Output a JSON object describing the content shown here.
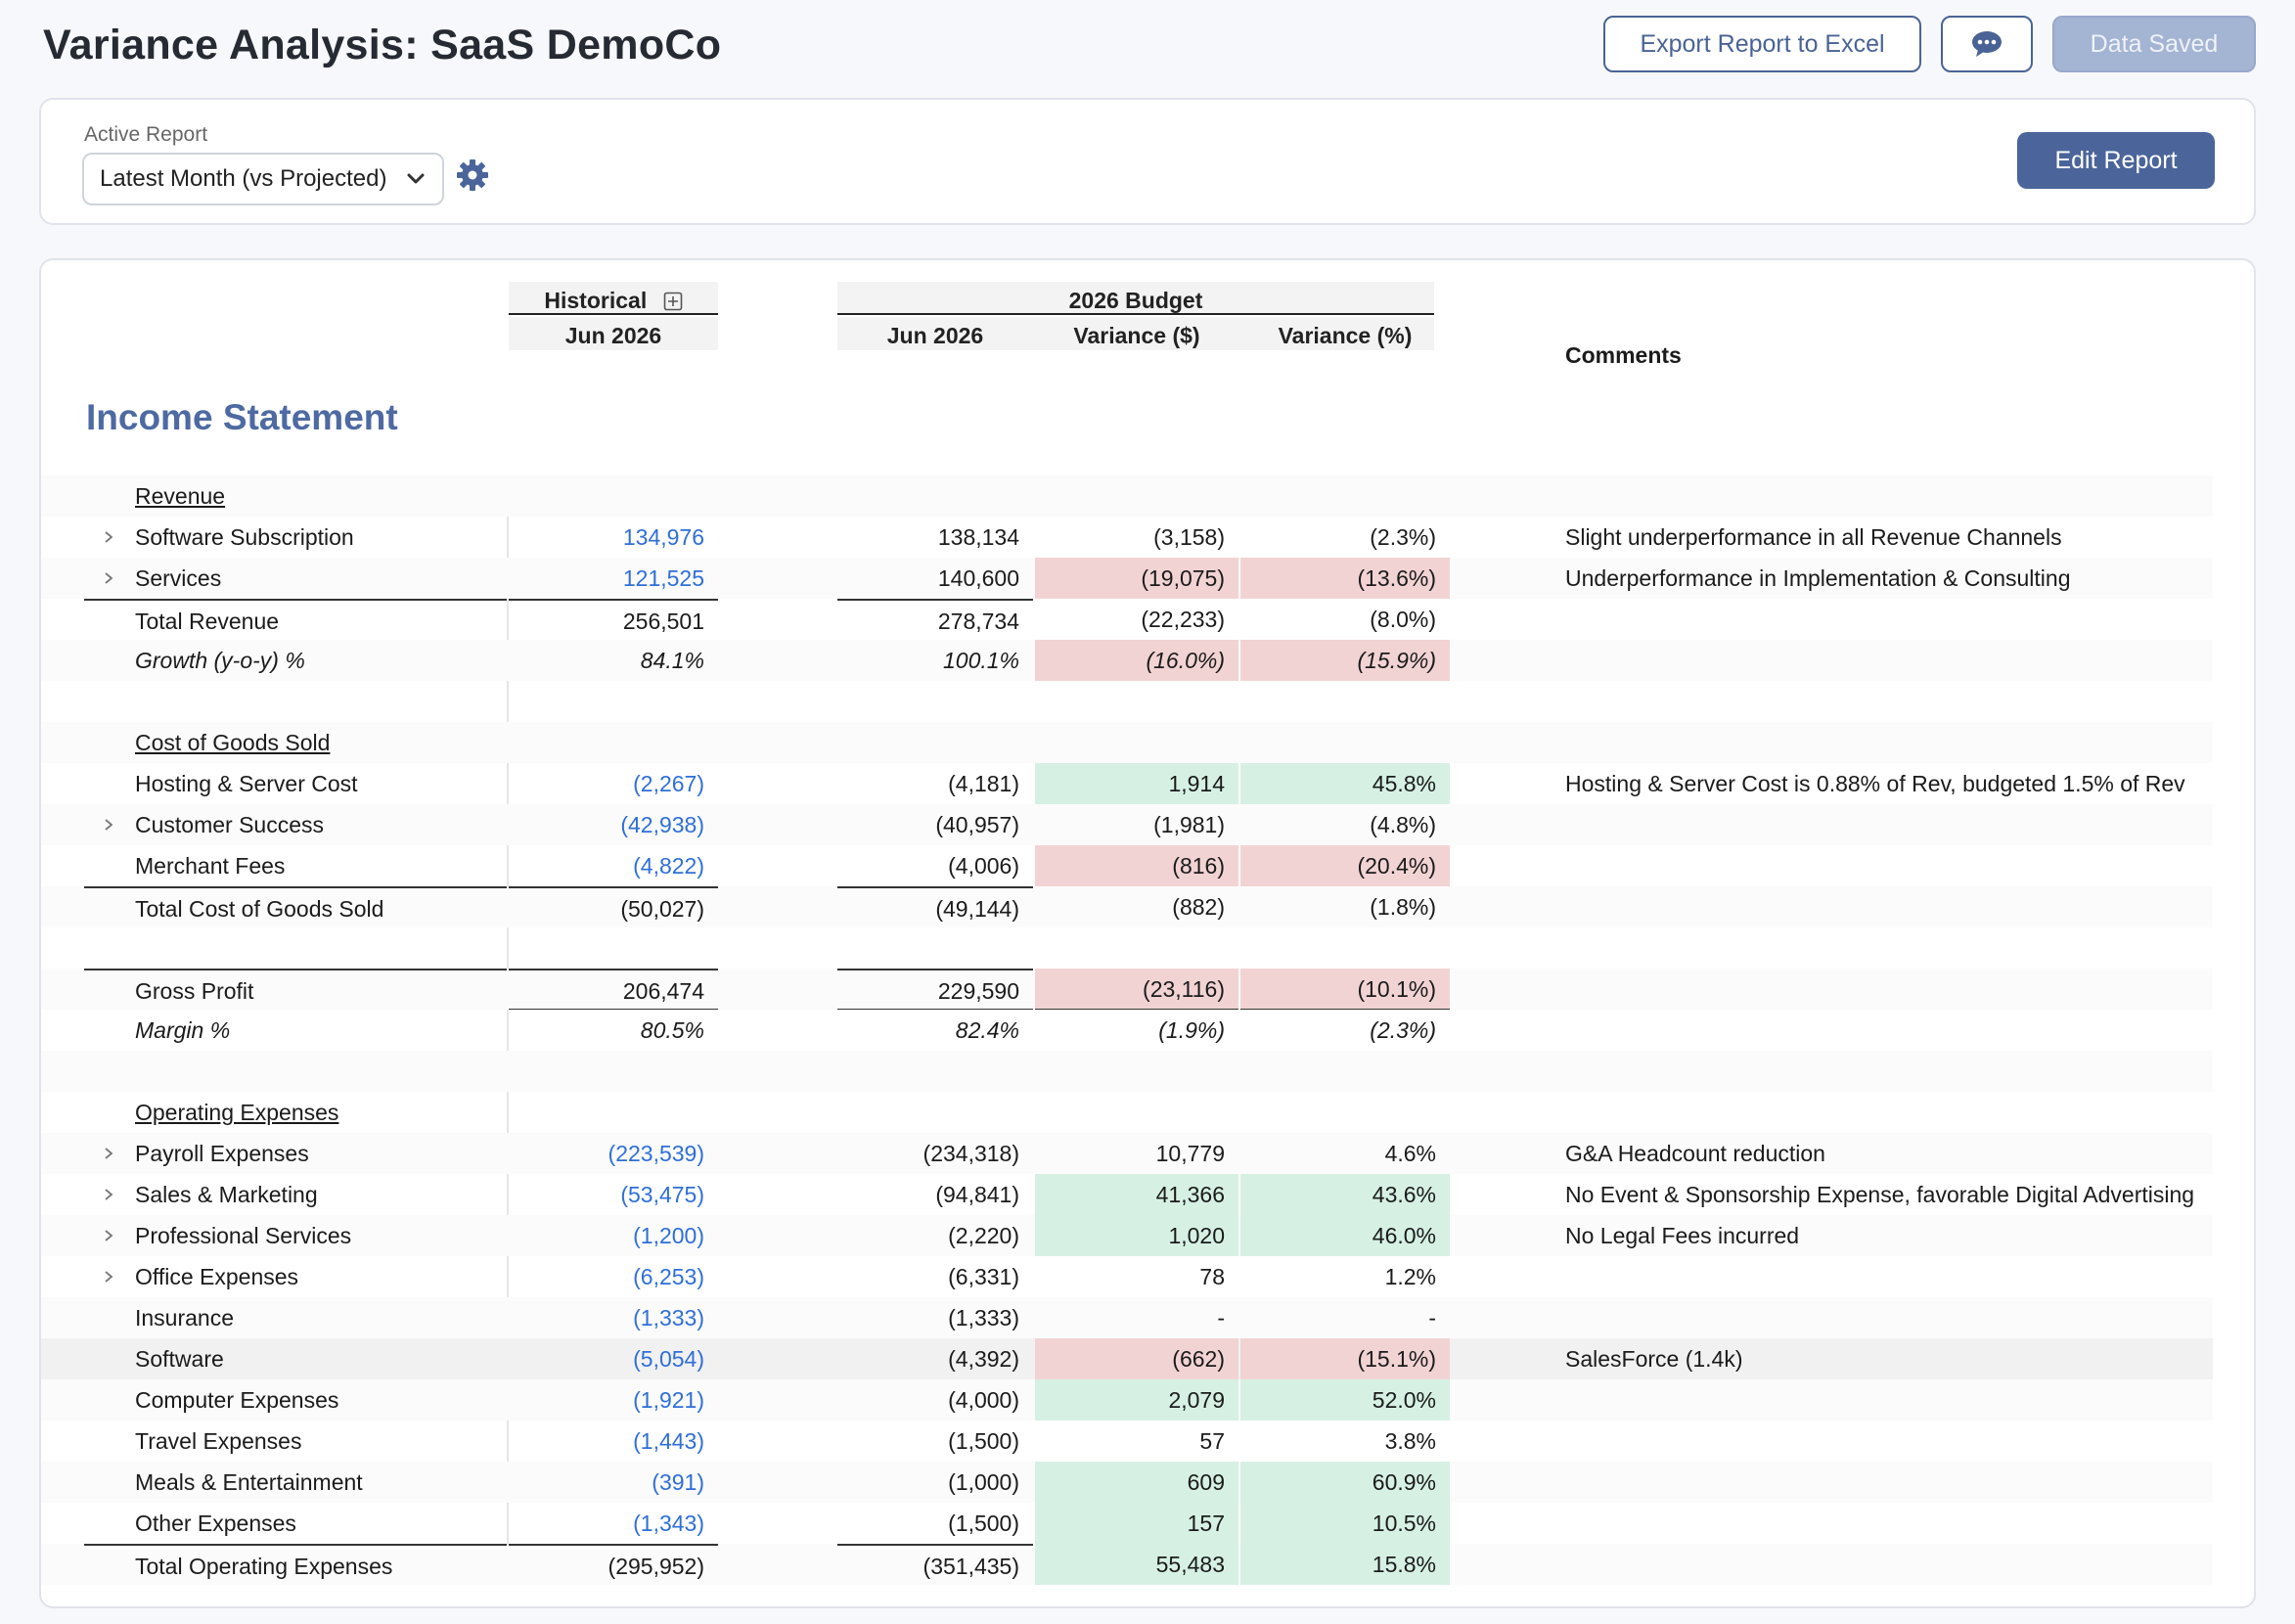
{
  "page": {
    "title": "Variance Analysis: SaaS DemoCo"
  },
  "toolbar": {
    "export_label": "Export Report to Excel",
    "saved_label": "Data Saved",
    "comment_icon": "chat-bubble-icon"
  },
  "report": {
    "label": "Active Report",
    "selected": "Latest Month (vs Projected)",
    "edit_label": "Edit Report"
  },
  "table": {
    "historical_header": "Historical",
    "historical_period": "Jun 2026",
    "budget_header": "2026 Budget",
    "budget_period": "Jun 2026",
    "variance_dollar": "Variance ($)",
    "variance_pct": "Variance (%)",
    "comments_header": "Comments",
    "section_title": "Income Statement",
    "rows": [
      {
        "label": "Revenue",
        "type": "header"
      },
      {
        "label": "Software Subscription",
        "expand": true,
        "hist": "134,976",
        "bud": "138,134",
        "vd": "(3,158)",
        "vp": "(2.3%)",
        "com": "Slight underperformance in all Revenue Channels"
      },
      {
        "label": "Services",
        "expand": true,
        "hist": "121,525",
        "bud": "140,600",
        "vd": "(19,075)",
        "vp": "(13.6%)",
        "tone": "neg",
        "com": "Underperformance in Implementation & Consulting"
      },
      {
        "label": "Total Revenue",
        "type": "total",
        "hist": "256,501",
        "bud": "278,734",
        "vd": "(22,233)",
        "vp": "(8.0%)"
      },
      {
        "label": "Growth (y-o-y) %",
        "type": "italic",
        "hist": "84.1%",
        "bud": "100.1%",
        "vd": "(16.0%)",
        "vp": "(15.9%)",
        "tone": "neg"
      },
      {
        "type": "blank"
      },
      {
        "label": "Cost of Goods Sold",
        "type": "header"
      },
      {
        "label": "Hosting & Server Cost",
        "hist": "(2,267)",
        "bud": "(4,181)",
        "vd": "1,914",
        "vp": "45.8%",
        "tone": "pos",
        "com": "Hosting & Server Cost is 0.88% of Rev, budgeted 1.5% of Rev"
      },
      {
        "label": "Customer Success",
        "expand": true,
        "hist": "(42,938)",
        "bud": "(40,957)",
        "vd": "(1,981)",
        "vp": "(4.8%)"
      },
      {
        "label": "Merchant Fees",
        "hist": "(4,822)",
        "bud": "(4,006)",
        "vd": "(816)",
        "vp": "(20.4%)",
        "tone": "neg"
      },
      {
        "label": "Total Cost of Goods Sold",
        "type": "total",
        "hist": "(50,027)",
        "bud": "(49,144)",
        "vd": "(882)",
        "vp": "(1.8%)"
      },
      {
        "type": "blank"
      },
      {
        "label": "Gross Profit",
        "type": "gp",
        "hist": "206,474",
        "bud": "229,590",
        "vd": "(23,116)",
        "vp": "(10.1%)",
        "tone": "neg"
      },
      {
        "label": "Margin %",
        "type": "italic",
        "hist": "80.5%",
        "bud": "82.4%",
        "vd": "(1.9%)",
        "vp": "(2.3%)"
      },
      {
        "type": "blank"
      },
      {
        "label": "Operating Expenses",
        "type": "header"
      },
      {
        "label": "Payroll Expenses",
        "expand": true,
        "hist": "(223,539)",
        "bud": "(234,318)",
        "vd": "10,779",
        "vp": "4.6%",
        "com": "G&A Headcount reduction"
      },
      {
        "label": "Sales & Marketing",
        "expand": true,
        "hist": "(53,475)",
        "bud": "(94,841)",
        "vd": "41,366",
        "vp": "43.6%",
        "tone": "pos",
        "com": "No Event & Sponsorship Expense, favorable Digital Advertising"
      },
      {
        "label": "Professional Services",
        "expand": true,
        "hist": "(1,200)",
        "bud": "(2,220)",
        "vd": "1,020",
        "vp": "46.0%",
        "tone": "pos",
        "com": "No Legal Fees incurred"
      },
      {
        "label": "Office Expenses",
        "expand": true,
        "hist": "(6,253)",
        "bud": "(6,331)",
        "vd": "78",
        "vp": "1.2%"
      },
      {
        "label": "Insurance",
        "hist": "(1,333)",
        "bud": "(1,333)",
        "vd": "-",
        "vp": "-"
      },
      {
        "label": "Software",
        "hist": "(5,054)",
        "bud": "(4,392)",
        "vd": "(662)",
        "vp": "(15.1%)",
        "tone": "neg",
        "highlight": true,
        "com": "SalesForce (1.4k)"
      },
      {
        "label": "Computer Expenses",
        "hist": "(1,921)",
        "bud": "(4,000)",
        "vd": "2,079",
        "vp": "52.0%",
        "tone": "pos"
      },
      {
        "label": "Travel Expenses",
        "hist": "(1,443)",
        "bud": "(1,500)",
        "vd": "57",
        "vp": "3.8%"
      },
      {
        "label": "Meals & Entertainment",
        "hist": "(391)",
        "bud": "(1,000)",
        "vd": "609",
        "vp": "60.9%",
        "tone": "pos"
      },
      {
        "label": "Other Expenses",
        "hist": "(1,343)",
        "bud": "(1,500)",
        "vd": "157",
        "vp": "10.5%",
        "tone": "pos"
      },
      {
        "label": "Total Operating Expenses",
        "type": "total",
        "hist": "(295,952)",
        "bud": "(351,435)",
        "vd": "55,483",
        "vp": "15.8%",
        "tone": "pos"
      }
    ]
  },
  "colors": {
    "accent": "#4b659b",
    "title_blue": "#4e6aa2",
    "link_blue": "#2f6fd8",
    "neg_fill": "#f2d3d3",
    "pos_fill": "#d6f1e4"
  }
}
